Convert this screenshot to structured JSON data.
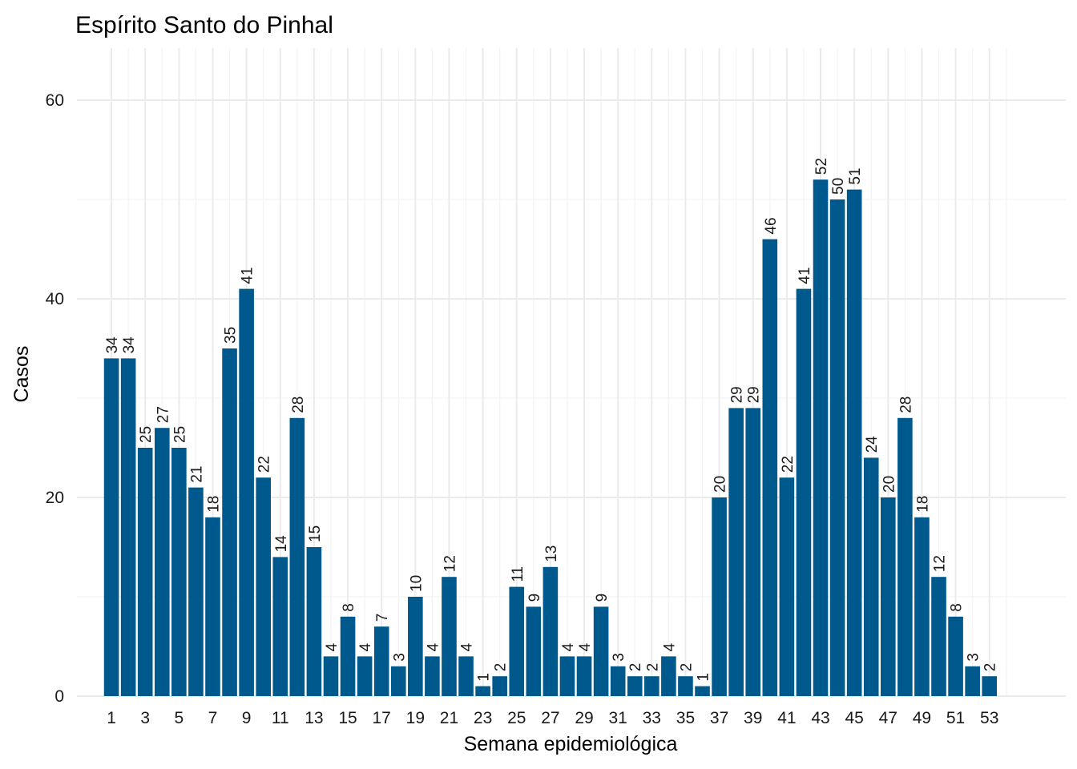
{
  "chart_data": {
    "type": "bar",
    "title": "Espírito Santo do Pinhal",
    "xlabel": "Semana epidemiológica",
    "ylabel": "Casos",
    "categories": [
      "1",
      "2",
      "3",
      "4",
      "5",
      "6",
      "7",
      "8",
      "9",
      "10",
      "11",
      "12",
      "13",
      "14",
      "15",
      "16",
      "17",
      "18",
      "19",
      "20",
      "21",
      "22",
      "23",
      "24",
      "25",
      "26",
      "27",
      "28",
      "29",
      "30",
      "31",
      "32",
      "33",
      "34",
      "35",
      "36",
      "37",
      "38",
      "39",
      "40",
      "41",
      "42",
      "43",
      "44",
      "45",
      "46",
      "47",
      "48",
      "49",
      "50",
      "51",
      "52",
      "53"
    ],
    "values": [
      34,
      34,
      25,
      27,
      25,
      21,
      18,
      35,
      41,
      22,
      14,
      28,
      15,
      4,
      8,
      4,
      7,
      3,
      10,
      4,
      12,
      4,
      1,
      2,
      11,
      9,
      13,
      4,
      4,
      9,
      3,
      2,
      2,
      4,
      2,
      1,
      20,
      29,
      29,
      46,
      22,
      41,
      52,
      50,
      51,
      24,
      20,
      28,
      18,
      12,
      8,
      3,
      2
    ],
    "x_tick_labels": [
      "1",
      "3",
      "5",
      "7",
      "9",
      "11",
      "13",
      "15",
      "17",
      "19",
      "21",
      "23",
      "25",
      "27",
      "29",
      "31",
      "33",
      "35",
      "37",
      "39",
      "41",
      "43",
      "45",
      "47",
      "49",
      "51",
      "53"
    ],
    "y_tick_labels": [
      "0",
      "20",
      "40",
      "60"
    ],
    "ylim": [
      0,
      65
    ],
    "bar_color": "#00598d",
    "grid": true,
    "data_labels": true,
    "legend": "none"
  }
}
